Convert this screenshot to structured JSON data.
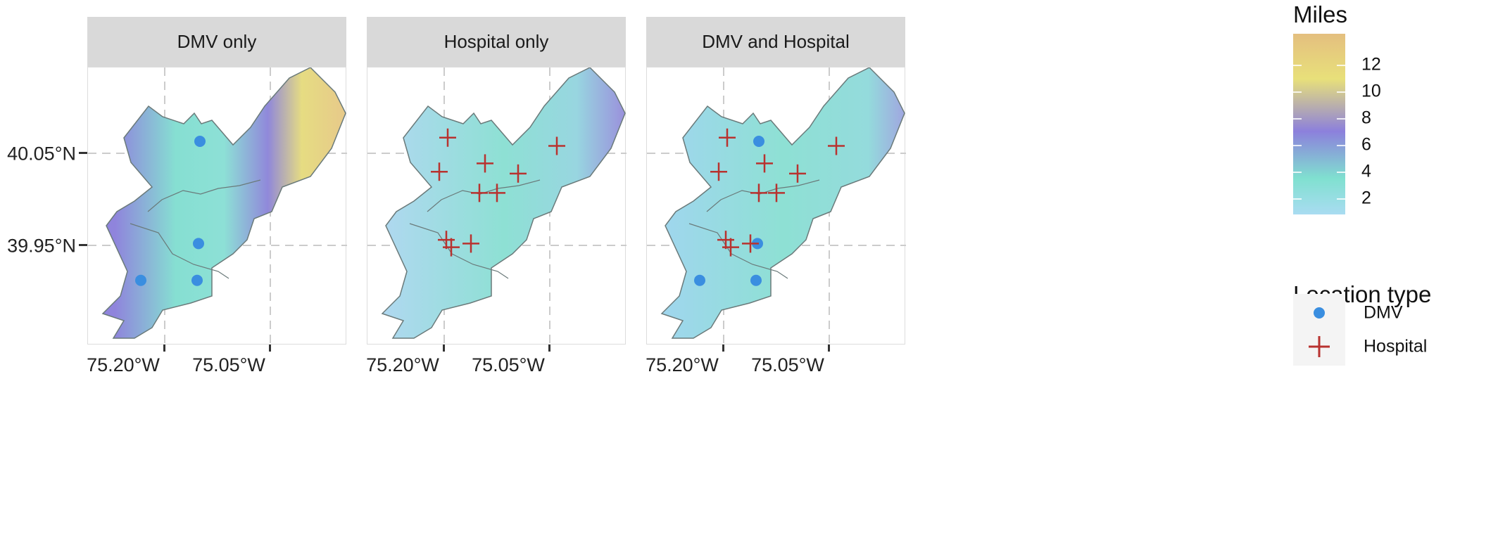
{
  "chart_data": {
    "type": "map",
    "facets": [
      {
        "title": "DMV only",
        "show": [
          "dmv"
        ],
        "surface": "dmv"
      },
      {
        "title": "Hospital only",
        "show": [
          "hospital"
        ],
        "surface": "hospital"
      },
      {
        "title": "DMV and Hospital",
        "show": [
          "dmv",
          "hospital"
        ],
        "surface": "both"
      }
    ],
    "x_ticks": [
      {
        "value": -75.2,
        "label": "75.20°W"
      },
      {
        "value": -75.05,
        "label": "75.05°W"
      }
    ],
    "y_ticks": [
      {
        "value": 40.05,
        "label": "40.05°N"
      },
      {
        "value": 39.95,
        "label": "39.95°N"
      }
    ],
    "grid": true,
    "colorbar": {
      "title": "Miles",
      "range": [
        0.8,
        14.3
      ],
      "ticks": [
        12,
        10,
        8,
        6,
        4,
        2
      ],
      "tick_labels": [
        "12",
        "10",
        "8",
        "6",
        "4",
        "2"
      ],
      "colors": [
        "#a9dcf1",
        "#80e0d0",
        "#8c80dc",
        "#e8e07a",
        "#e4bf7f"
      ]
    },
    "legend": {
      "title": "Location type",
      "position": "right",
      "items": [
        {
          "key": "dmv",
          "label": "DMV",
          "color": "#3a8ee0",
          "shape": "circle"
        },
        {
          "key": "hospital",
          "label": "Hospital",
          "color": "#b8322f",
          "shape": "cross"
        }
      ]
    },
    "locations": {
      "dmv": [
        {
          "lon": -75.15,
          "lat": 40.063
        },
        {
          "lon": -75.152,
          "lat": 39.952
        },
        {
          "lon": -75.234,
          "lat": 39.912
        },
        {
          "lon": -75.154,
          "lat": 39.912
        }
      ],
      "hospital": [
        {
          "lon": -75.195,
          "lat": 40.067
        },
        {
          "lon": -75.207,
          "lat": 40.03
        },
        {
          "lon": -75.142,
          "lat": 40.039
        },
        {
          "lon": -75.095,
          "lat": 40.028
        },
        {
          "lon": -75.04,
          "lat": 40.058
        },
        {
          "lon": -75.15,
          "lat": 40.007
        },
        {
          "lon": -75.125,
          "lat": 40.007
        },
        {
          "lon": -75.197,
          "lat": 39.956
        },
        {
          "lon": -75.19,
          "lat": 39.948
        },
        {
          "lon": -75.162,
          "lat": 39.952
        }
      ]
    }
  }
}
